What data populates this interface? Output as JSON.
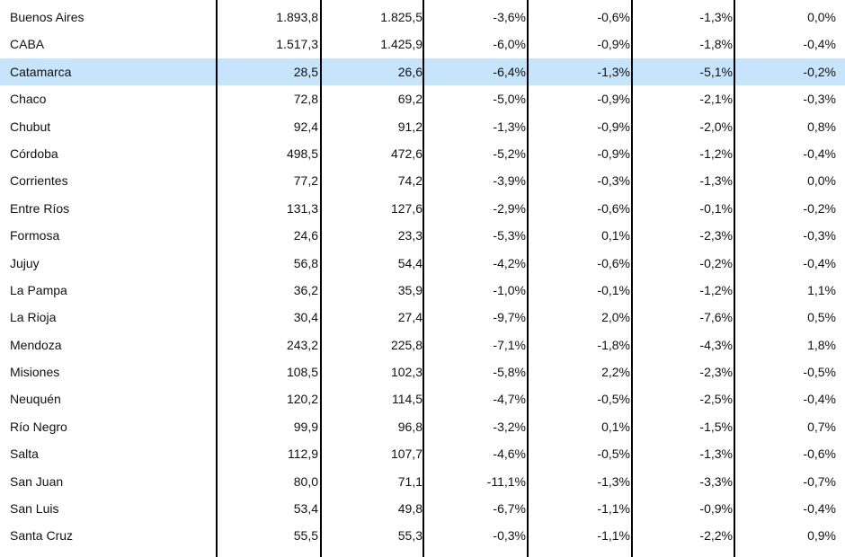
{
  "table": {
    "highlight_color": "#c6e4fb",
    "rows": [
      {
        "name": "Buenos Aires",
        "v1": "1.893,8",
        "v2": "1.825,5",
        "p1": "-3,6%",
        "p2": "-0,6%",
        "p3": "-1,3%",
        "p4": "0,0%"
      },
      {
        "name": "CABA",
        "v1": "1.517,3",
        "v2": "1.425,9",
        "p1": "-6,0%",
        "p2": "-0,9%",
        "p3": "-1,8%",
        "p4": "-0,4%"
      },
      {
        "name": "Catamarca",
        "v1": "28,5",
        "v2": "26,6",
        "p1": "-6,4%",
        "p2": "-1,3%",
        "p3": "-5,1%",
        "p4": "-0,2%",
        "highlighted": true
      },
      {
        "name": "Chaco",
        "v1": "72,8",
        "v2": "69,2",
        "p1": "-5,0%",
        "p2": "-0,9%",
        "p3": "-2,1%",
        "p4": "-0,3%"
      },
      {
        "name": "Chubut",
        "v1": "92,4",
        "v2": "91,2",
        "p1": "-1,3%",
        "p2": "-0,9%",
        "p3": "-2,0%",
        "p4": "0,8%"
      },
      {
        "name": "Córdoba",
        "v1": "498,5",
        "v2": "472,6",
        "p1": "-5,2%",
        "p2": "-0,9%",
        "p3": "-1,2%",
        "p4": "-0,4%"
      },
      {
        "name": "Corrientes",
        "v1": "77,2",
        "v2": "74,2",
        "p1": "-3,9%",
        "p2": "-0,3%",
        "p3": "-1,3%",
        "p4": "0,0%"
      },
      {
        "name": "Entre Ríos",
        "v1": "131,3",
        "v2": "127,6",
        "p1": "-2,9%",
        "p2": "-0,6%",
        "p3": "-0,1%",
        "p4": "-0,2%"
      },
      {
        "name": "Formosa",
        "v1": "24,6",
        "v2": "23,3",
        "p1": "-5,3%",
        "p2": "0,1%",
        "p3": "-2,3%",
        "p4": "-0,3%"
      },
      {
        "name": "Jujuy",
        "v1": "56,8",
        "v2": "54,4",
        "p1": "-4,2%",
        "p2": "-0,6%",
        "p3": "-0,2%",
        "p4": "-0,4%"
      },
      {
        "name": "La Pampa",
        "v1": "36,2",
        "v2": "35,9",
        "p1": "-1,0%",
        "p2": "-0,1%",
        "p3": "-1,2%",
        "p4": "1,1%"
      },
      {
        "name": "La Rioja",
        "v1": "30,4",
        "v2": "27,4",
        "p1": "-9,7%",
        "p2": "2,0%",
        "p3": "-7,6%",
        "p4": "0,5%"
      },
      {
        "name": "Mendoza",
        "v1": "243,2",
        "v2": "225,8",
        "p1": "-7,1%",
        "p2": "-1,8%",
        "p3": "-4,3%",
        "p4": "1,8%"
      },
      {
        "name": "Misiones",
        "v1": "108,5",
        "v2": "102,3",
        "p1": "-5,8%",
        "p2": "2,2%",
        "p3": "-2,3%",
        "p4": "-0,5%"
      },
      {
        "name": "Neuquén",
        "v1": "120,2",
        "v2": "114,5",
        "p1": "-4,7%",
        "p2": "-0,5%",
        "p3": "-2,5%",
        "p4": "-0,4%"
      },
      {
        "name": "Río Negro",
        "v1": "99,9",
        "v2": "96,8",
        "p1": "-3,2%",
        "p2": "0,1%",
        "p3": "-1,5%",
        "p4": "0,7%"
      },
      {
        "name": "Salta",
        "v1": "112,9",
        "v2": "107,7",
        "p1": "-4,6%",
        "p2": "-0,5%",
        "p3": "-1,3%",
        "p4": "-0,6%"
      },
      {
        "name": "San Juan",
        "v1": "80,0",
        "v2": "71,1",
        "p1": "-11,1%",
        "p2": "-1,3%",
        "p3": "-3,3%",
        "p4": "-0,7%"
      },
      {
        "name": "San Luis",
        "v1": "53,4",
        "v2": "49,8",
        "p1": "-6,7%",
        "p2": "-1,1%",
        "p3": "-0,9%",
        "p4": "-0,4%"
      },
      {
        "name": "Santa Cruz",
        "v1": "55,5",
        "v2": "55,3",
        "p1": "-0,3%",
        "p2": "-1,1%",
        "p3": "-2,2%",
        "p4": "0,9%"
      }
    ]
  }
}
